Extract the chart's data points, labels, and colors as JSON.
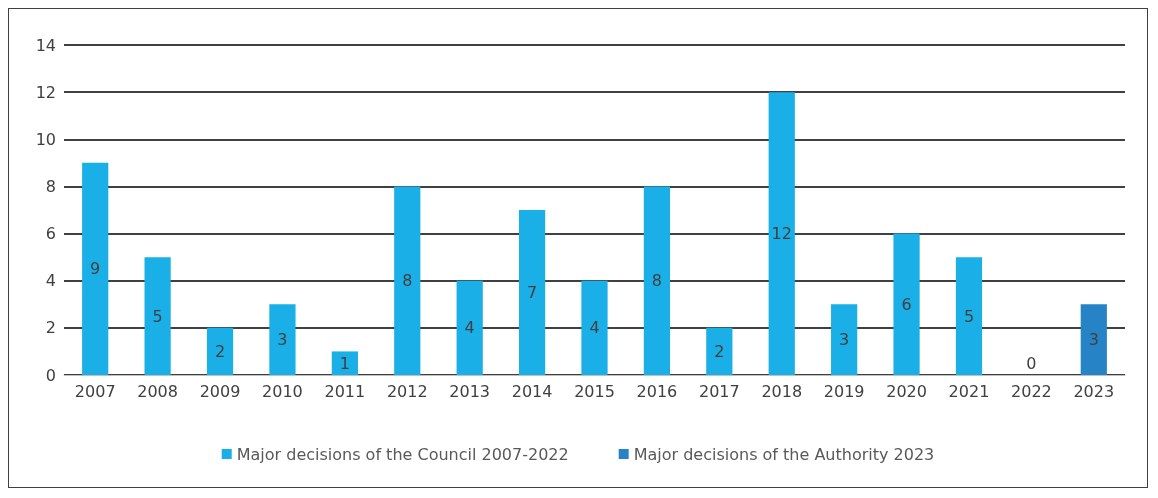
{
  "chart_data": {
    "type": "bar",
    "categories": [
      "2007",
      "2008",
      "2009",
      "2010",
      "2011",
      "2012",
      "2013",
      "2014",
      "2015",
      "2016",
      "2017",
      "2018",
      "2019",
      "2020",
      "2021",
      "2022",
      "2023"
    ],
    "series": [
      {
        "name": "Major decisions of the Council 2007-2022",
        "color": "#1aafe6",
        "values": [
          9,
          5,
          2,
          3,
          1,
          8,
          4,
          7,
          4,
          8,
          2,
          12,
          3,
          6,
          5,
          0,
          null
        ]
      },
      {
        "name": "Major decisions of the Authority 2023",
        "color": "#2683c6",
        "values": [
          null,
          null,
          null,
          null,
          null,
          null,
          null,
          null,
          null,
          null,
          null,
          null,
          null,
          null,
          null,
          null,
          3
        ]
      }
    ],
    "ylim": [
      0,
      14
    ],
    "yticks": [
      0,
      2,
      4,
      6,
      8,
      10,
      12,
      14
    ],
    "grid": "y",
    "legend": "bottom",
    "data_labels": true
  }
}
